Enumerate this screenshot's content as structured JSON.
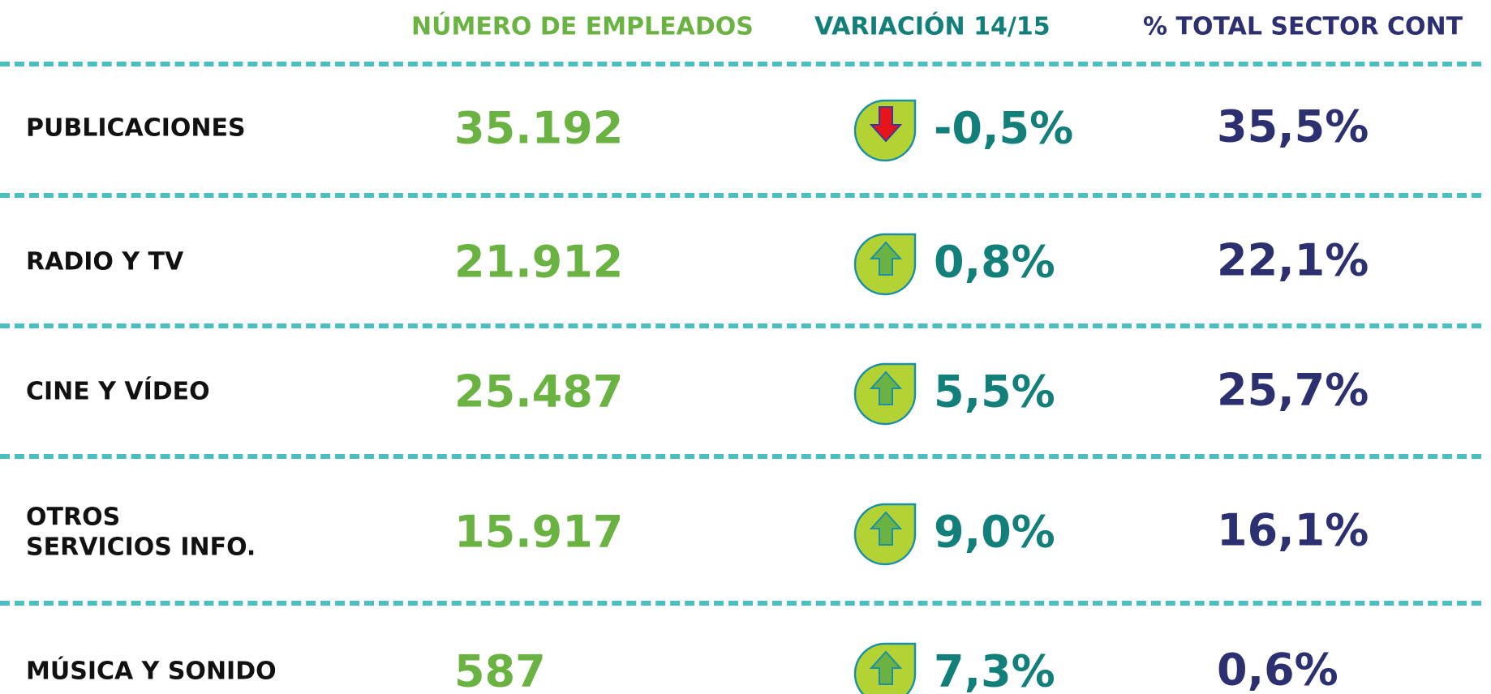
{
  "header": {
    "columns": [
      "NÚMERO DE EMPLEADOS",
      "VARIACIÓN 14/15",
      "% TOTAL SECTOR CONT"
    ]
  },
  "table": {
    "rows": [
      {
        "label": [
          "PUBLICACIONES"
        ],
        "employees": "35.192",
        "variation": "-0,5%",
        "arrow": "down",
        "share": "35,5%"
      },
      {
        "label": [
          "RADIO Y TV"
        ],
        "employees": "21.912",
        "variation": "0,8%",
        "arrow": "up",
        "share": "22,1%"
      },
      {
        "label": [
          "CINE Y VÍDEO"
        ],
        "employees": "25.487",
        "variation": "5,5%",
        "arrow": "up",
        "share": "25,7%"
      },
      {
        "label": [
          "OTROS",
          "SERVICIOS INFO."
        ],
        "employees": "15.917",
        "variation": "9,0%",
        "arrow": "up",
        "share": "16,1%"
      },
      {
        "label": [
          "MÚSICA Y SONIDO"
        ],
        "employees": "587",
        "variation": "7,3%",
        "arrow": "up",
        "share": "0,6%"
      }
    ]
  }
}
